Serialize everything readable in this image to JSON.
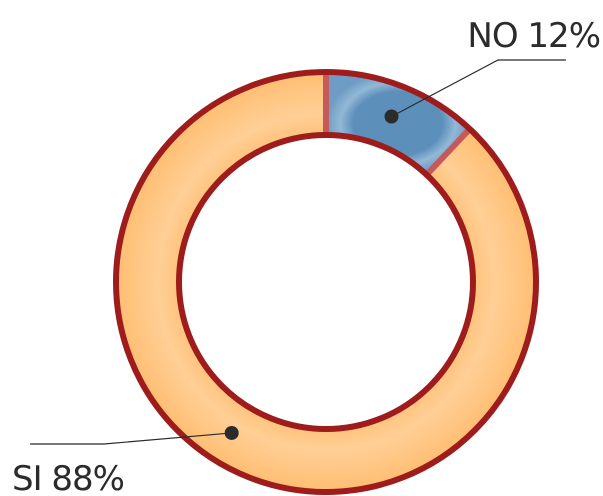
{
  "chart_data": {
    "type": "pie",
    "donut": true,
    "title": "",
    "slices": [
      {
        "label": "NO",
        "value": 12,
        "display": "NO 12%",
        "color": "#7fa8c9"
      },
      {
        "label": "SI",
        "value": 88,
        "display": "SI 88%",
        "color": "#ffc88a"
      }
    ],
    "colors": {
      "ring_outline": "#9e1c1c",
      "separator": "#c65a5a",
      "leader_line": "#2b2b2b",
      "marker_dot": "#2b2b2b",
      "background": "#ffffff"
    }
  }
}
